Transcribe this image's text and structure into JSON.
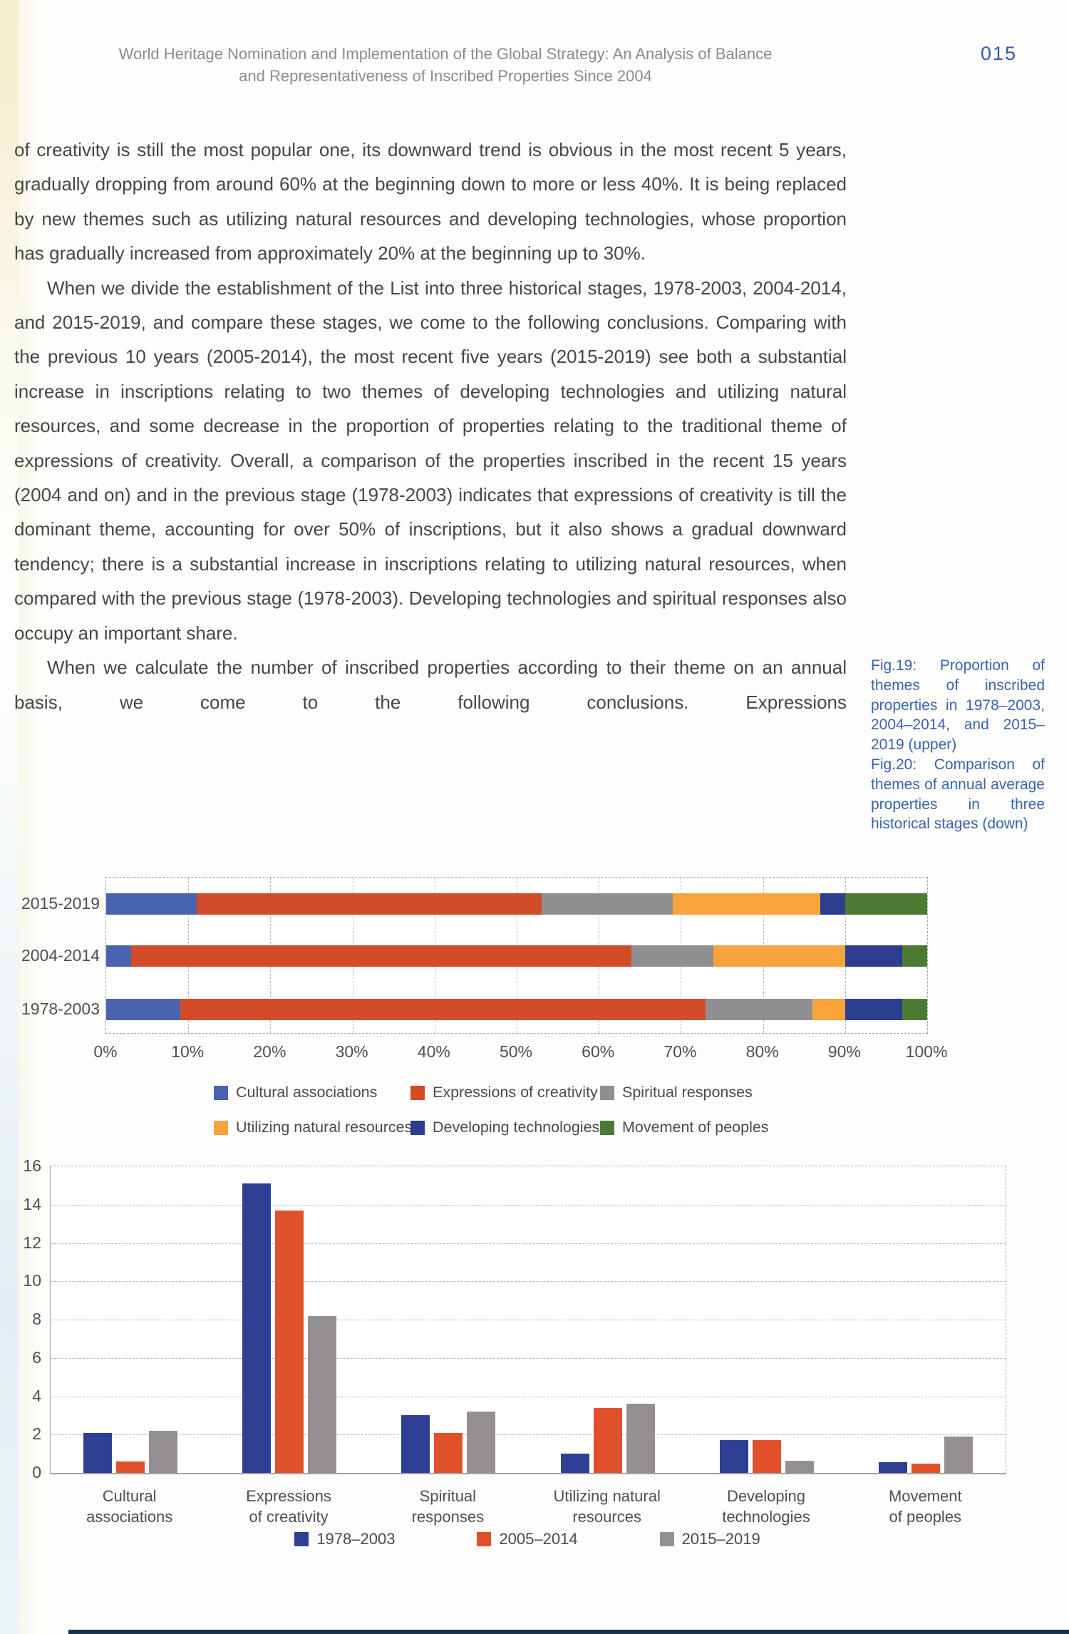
{
  "header": {
    "title_line1": "World Heritage Nomination and Implementation of the Global Strategy: An Analysis of Balance",
    "title_line2": "and Representativeness of Inscribed Properties Since 2004",
    "page_number": "015"
  },
  "body": {
    "paragraphs": [
      {
        "indent": false,
        "text": "of creativity is still the most popular one, its downward trend is obvious in the most recent 5 years, gradually dropping from around 60% at the beginning down to more or less 40%. It is being replaced by new themes such as utilizing natural resources and developing technologies, whose proportion has gradually increased from approximately 20% at the beginning up to 30%."
      },
      {
        "indent": true,
        "text": "When we divide the establishment of the List into three historical stages, 1978-2003, 2004-2014, and 2015-2019, and compare these stages, we come to the following conclusions. Comparing with the previous 10 years (2005-2014), the most recent five years (2015-2019) see both a substantial increase in inscriptions relating to two themes of developing technologies and utilizing natural resources, and some decrease in the proportion of properties relating to the traditional theme of expressions of creativity. Overall, a comparison of the properties inscribed in the recent 15 years (2004 and on) and in the previous stage (1978-2003) indicates that expressions of creativity is till the dominant theme, accounting for over 50% of inscriptions, but it also shows a gradual downward tendency; there is a substantial increase in inscriptions relating to utilizing natural resources, when compared with the previous stage (1978-2003). Developing technologies and spiritual responses also occupy an important share."
      },
      {
        "indent": true,
        "text": "When we calculate the number of inscribed properties according to their theme on an annual basis, we come to the following conclusions. Expressions"
      }
    ]
  },
  "captions": [
    "Fig.19: Proportion of themes of inscribed properties in 1978–2003, 2004–2014, and 2015–2019 (upper)",
    "Fig.20: Comparison of themes of annual average properties in three historical stages (down)"
  ],
  "chart_data": [
    {
      "id": "fig19",
      "type": "bar",
      "subtype": "horizontal-stacked",
      "title": "Proportion of themes of inscribed properties in three stages",
      "categories": [
        "2015-2019",
        "2004-2014",
        "1978-2003"
      ],
      "series": [
        {
          "name": "Cultural associations",
          "color": "#4a63ae",
          "values": [
            11,
            3,
            9
          ]
        },
        {
          "name": "Expressions of creativity",
          "color": "#d34b27",
          "values": [
            42,
            61,
            64
          ]
        },
        {
          "name": "Spiritual responses",
          "color": "#8f8f92",
          "values": [
            16,
            10,
            13
          ]
        },
        {
          "name": "Utilizing natural resources",
          "color": "#f9a33c",
          "values": [
            18,
            16,
            4
          ]
        },
        {
          "name": "Developing technologies",
          "color": "#2d3d8f",
          "values": [
            3,
            7,
            7
          ]
        },
        {
          "name": "Movement of peoples",
          "color": "#4c7a33",
          "values": [
            10,
            3,
            3
          ]
        }
      ],
      "xlim": [
        0,
        100
      ],
      "x_ticks": [
        "0%",
        "10%",
        "20%",
        "30%",
        "40%",
        "50%",
        "60%",
        "70%",
        "80%",
        "90%",
        "100%"
      ],
      "grid": "vertical-dashed",
      "legend_position": "bottom-two-rows"
    },
    {
      "id": "fig20",
      "type": "bar",
      "subtype": "vertical-grouped",
      "title": "Comparison of themes of annual average properties in three historical stages",
      "categories": [
        "Cultural associations",
        "Expressions of creativity",
        "Spiritual responses",
        "Utilizing natural resources",
        "Developing technologies",
        "Movement of peoples"
      ],
      "category_label_lines": [
        [
          "Cultural",
          "associations"
        ],
        [
          "Expressions",
          "of creativity"
        ],
        [
          "Spiritual",
          "responses"
        ],
        [
          "Utilizing natural",
          "resources"
        ],
        [
          "Developing",
          "technologies"
        ],
        [
          "Movement",
          "of peoples"
        ]
      ],
      "series": [
        {
          "name": "1978–2003",
          "color": "#2f3f94",
          "values": [
            2.1,
            15.1,
            3.0,
            1.0,
            1.7,
            0.55
          ]
        },
        {
          "name": "2005–2014",
          "color": "#e0512b",
          "values": [
            0.6,
            13.7,
            2.1,
            3.4,
            1.7,
            0.5
          ]
        },
        {
          "name": "2015–2019",
          "color": "#948f93",
          "values": [
            2.2,
            8.2,
            3.2,
            3.6,
            0.65,
            1.9
          ]
        }
      ],
      "ylim": [
        0,
        16
      ],
      "y_ticks": [
        0,
        2,
        4,
        6,
        8,
        10,
        12,
        14,
        16
      ],
      "grid": "horizontal-dashed",
      "legend_position": "bottom"
    }
  ]
}
